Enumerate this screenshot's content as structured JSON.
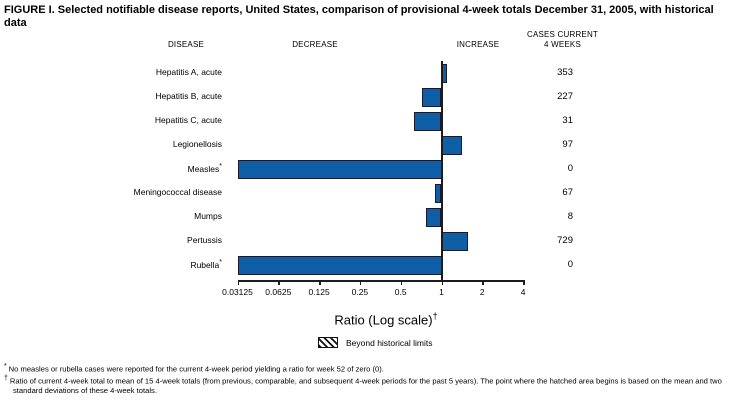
{
  "title": "FIGURE I. Selected notifiable disease reports, United States, comparison of provisional 4-week totals December 31, 2005, with historical data",
  "column_headers": {
    "disease": "DISEASE",
    "decrease": "DECREASE",
    "increase": "INCREASE",
    "cases_line1": "CASES CURRENT",
    "cases_line2": "4 WEEKS"
  },
  "chart_data": {
    "type": "bar",
    "orientation": "horizontal",
    "scale": "log2",
    "xlim": [
      0.03125,
      4
    ],
    "baseline": 1,
    "grid": false,
    "axis": {
      "label": "Ratio (Log scale)",
      "label_superscript": "†",
      "tick_values": [
        0.03125,
        0.0625,
        0.125,
        0.25,
        0.5,
        1,
        2,
        4
      ],
      "tick_labels": [
        "0.03125",
        "0.0625",
        "0.125",
        "0.25",
        "0.5",
        "1",
        "2",
        "4"
      ]
    },
    "series": [
      {
        "disease": "Hepatitis A, acute",
        "marker": "",
        "ratio": 1.1,
        "cases": 353
      },
      {
        "disease": "Hepatitis B, acute",
        "marker": "",
        "ratio": 0.72,
        "cases": 227
      },
      {
        "disease": "Hepatitis C, acute",
        "marker": "",
        "ratio": 0.63,
        "cases": 31
      },
      {
        "disease": "Legionellosis",
        "marker": "",
        "ratio": 1.42,
        "cases": 97
      },
      {
        "disease": "Measles",
        "marker": "*",
        "ratio": 0,
        "cases": 0
      },
      {
        "disease": "Meningococcal disease",
        "marker": "",
        "ratio": 0.9,
        "cases": 67
      },
      {
        "disease": "Mumps",
        "marker": "",
        "ratio": 0.77,
        "cases": 8
      },
      {
        "disease": "Pertussis",
        "marker": "",
        "ratio": 1.57,
        "cases": 729
      },
      {
        "disease": "Rubella",
        "marker": "*",
        "ratio": 0,
        "cases": 0
      }
    ],
    "legend": {
      "label": "Beyond historical limits",
      "swatch": "hatched"
    },
    "colors": {
      "bar_fill": "#0e5fa5",
      "bar_border": "#1a1a2e",
      "axis_line": "#1c1c1c"
    },
    "zero_note": "bars with ratio 0 are drawn to the left edge of the plot"
  },
  "footnotes": [
    {
      "marker": "*",
      "text": "No measles or rubella cases were reported for the current 4-week period yielding a ratio for week 52 of zero (0)."
    },
    {
      "marker": "†",
      "text": "Ratio of current 4-week total to mean of 15 4-week totals (from previous, comparable, and subsequent 4-week periods for the past 5 years). The point where the hatched area begins is based on the mean and two standard deviations of these 4-week totals."
    }
  ]
}
